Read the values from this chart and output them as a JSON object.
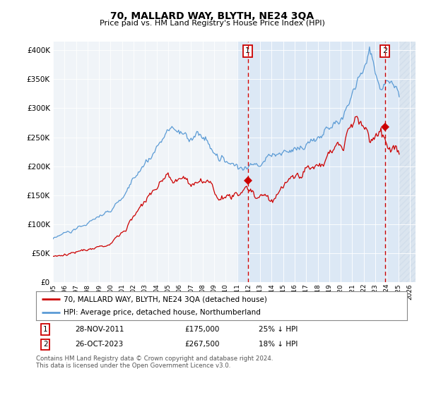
{
  "title": "70, MALLARD WAY, BLYTH, NE24 3QA",
  "subtitle": "Price paid vs. HM Land Registry's House Price Index (HPI)",
  "ytick_values": [
    0,
    50000,
    100000,
    150000,
    200000,
    250000,
    300000,
    350000,
    400000
  ],
  "ylim": [
    0,
    415000
  ],
  "xlim_start": 1995.0,
  "xlim_end": 2026.5,
  "hpi_color": "#5b9bd5",
  "price_color": "#cc0000",
  "shade_start": 2011.0,
  "shade_end": 2025.5,
  "hatch_start": 2025.0,
  "hatch_end": 2026.5,
  "marker1_year": 2011.92,
  "marker1_price": 175000,
  "marker2_year": 2023.83,
  "marker2_price": 267500,
  "legend_line1": "70, MALLARD WAY, BLYTH, NE24 3QA (detached house)",
  "legend_line2": "HPI: Average price, detached house, Northumberland",
  "footer": "Contains HM Land Registry data © Crown copyright and database right 2024.\nThis data is licensed under the Open Government Licence v3.0.",
  "background_color": "#dce8f5",
  "shade_color": "#dce8f5"
}
